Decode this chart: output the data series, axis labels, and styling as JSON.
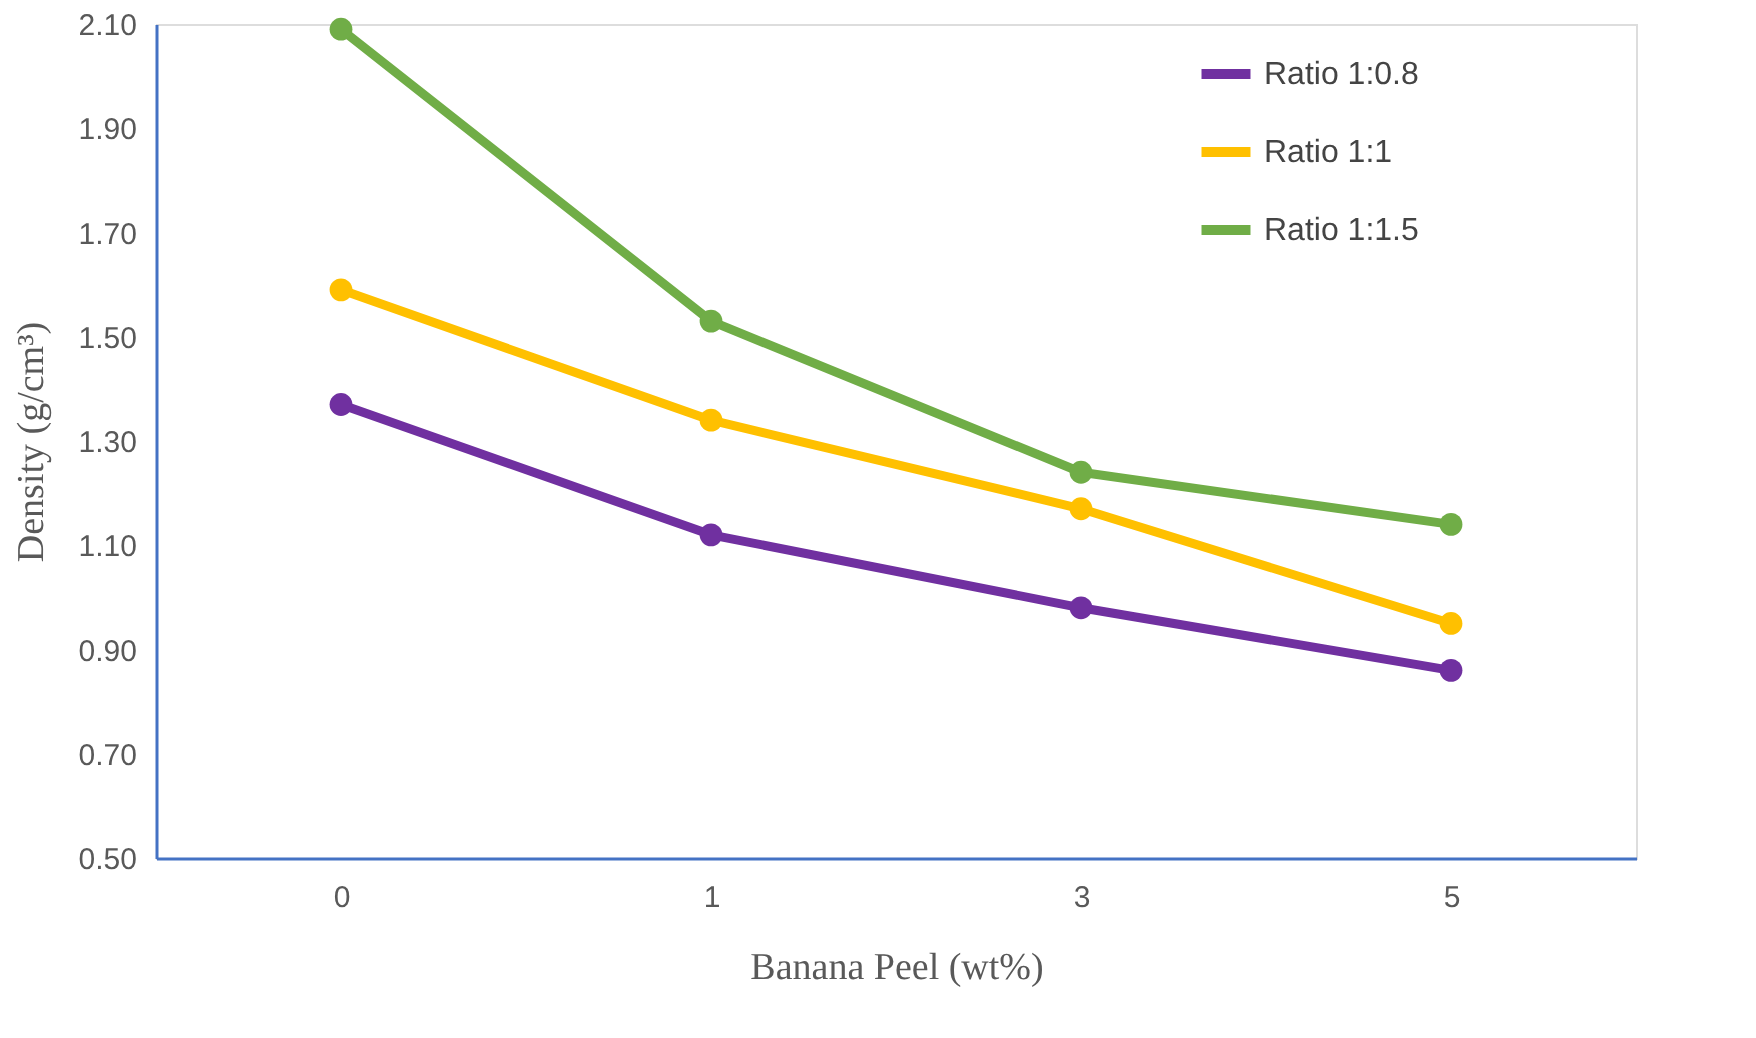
{
  "chart_data": {
    "type": "line",
    "xlabel": "Banana Peel (wt%)",
    "ylabel": "Density (g/cm³)",
    "categories": [
      "0",
      "1",
      "3",
      "5"
    ],
    "series": [
      {
        "name": "Ratio 1:0.8",
        "color": "#7030a0",
        "values": [
          1.37,
          1.12,
          0.98,
          0.86
        ]
      },
      {
        "name": "Ratio 1:1",
        "color": "#ffc000",
        "values": [
          1.59,
          1.34,
          1.17,
          0.95
        ]
      },
      {
        "name": "Ratio 1:1.5",
        "color": "#70ad47",
        "values": [
          2.09,
          1.53,
          1.24,
          1.14
        ]
      }
    ],
    "ylim": [
      0.5,
      2.1
    ],
    "yticks": [
      {
        "value": 0.5,
        "label": "0.50"
      },
      {
        "value": 0.7,
        "label": "0.70"
      },
      {
        "value": 0.9,
        "label": "0.90"
      },
      {
        "value": 1.1,
        "label": "1.10"
      },
      {
        "value": 1.3,
        "label": "1.30"
      },
      {
        "value": 1.5,
        "label": "1.50"
      },
      {
        "value": 1.7,
        "label": "1.70"
      },
      {
        "value": 1.9,
        "label": "1.90"
      },
      {
        "value": 2.1,
        "label": "2.10"
      }
    ],
    "grid": false,
    "legend": "top right",
    "marker": "circle",
    "line_style": "solid"
  }
}
